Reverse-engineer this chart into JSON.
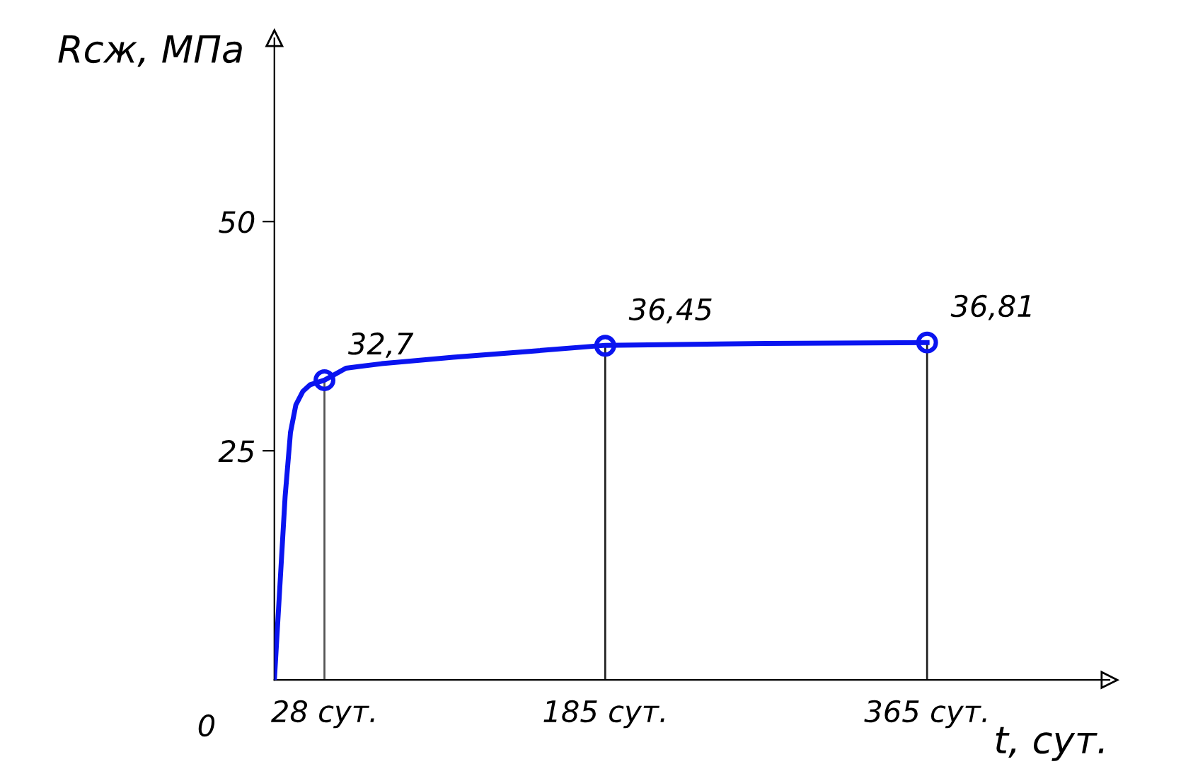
{
  "chart_data": {
    "type": "line",
    "xlabel": "t, сут.",
    "ylabel": "Rсж, МПа",
    "xlim": [
      0,
      467
    ],
    "ylim": [
      0,
      70
    ],
    "xticks": [
      {
        "value": 28,
        "label": "28 сут."
      },
      {
        "value": 185,
        "label": "185 сут."
      },
      {
        "value": 365,
        "label": "365 сут."
      }
    ],
    "yticks": [
      25,
      50
    ],
    "annotations": [
      "0"
    ],
    "grid": false,
    "legend": false,
    "series": [
      {
        "color": "#0a14f0",
        "marker": "none",
        "x": [
          0,
          3,
          6,
          9,
          12,
          16,
          20,
          28,
          40,
          60,
          100,
          140,
          185,
          275,
          365
        ],
        "values": [
          0,
          10,
          20,
          27,
          30,
          31.5,
          32.2,
          32.7,
          34,
          34.5,
          35.2,
          35.8,
          36.5,
          36.7,
          36.8
        ]
      },
      {
        "type": "scatter",
        "color": "#0a14f0",
        "marker": "circle",
        "x": [
          28,
          185,
          365
        ],
        "values": [
          32.7,
          36.45,
          36.81
        ],
        "value_labels": [
          "32,7",
          "36,45",
          "36,81"
        ]
      }
    ],
    "ref_lines": [
      {
        "axis": "x",
        "value": 28,
        "color": "#555555"
      },
      {
        "axis": "x",
        "value": 185,
        "color": "#222222"
      },
      {
        "axis": "x",
        "value": 365,
        "color": "#222222"
      }
    ]
  }
}
